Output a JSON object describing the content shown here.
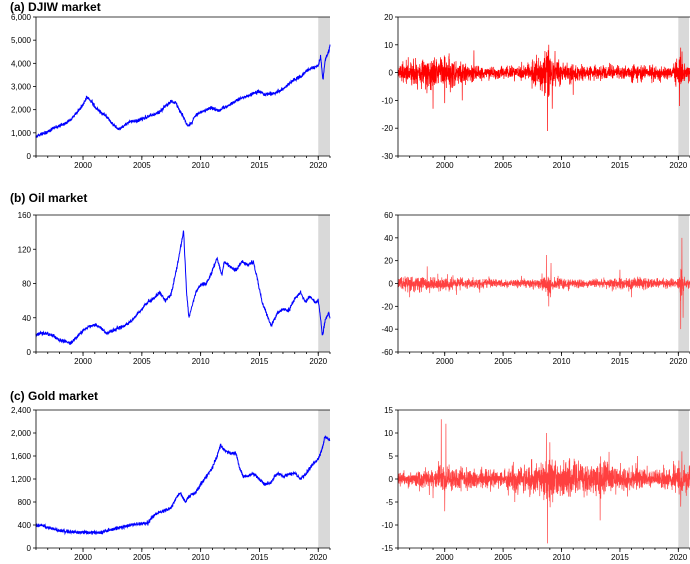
{
  "chart_data": [
    {
      "type": "line",
      "title": "(a) DJIW market",
      "series": [
        {
          "name": "",
          "color": "#0000ff",
          "x": [
            1996.0,
            1996.5,
            1997.0,
            1997.5,
            1998.0,
            1998.5,
            1999.0,
            1999.5,
            2000.0,
            2000.3,
            2000.8,
            2001.0,
            2001.5,
            2002.0,
            2002.5,
            2003.0,
            2003.5,
            2004.0,
            2004.5,
            2005.0,
            2005.5,
            2006.0,
            2006.5,
            2007.0,
            2007.5,
            2007.9,
            2008.3,
            2008.6,
            2008.9,
            2009.2,
            2009.5,
            2010.0,
            2010.5,
            2011.0,
            2011.5,
            2012.0,
            2012.5,
            2013.0,
            2013.5,
            2014.0,
            2014.5,
            2015.0,
            2015.5,
            2016.0,
            2016.5,
            2017.0,
            2017.5,
            2018.0,
            2018.5,
            2019.0,
            2019.5,
            2020.0,
            2020.2,
            2020.4,
            2020.6,
            2020.9,
            2021.0
          ],
          "y": [
            850,
            950,
            1050,
            1200,
            1300,
            1400,
            1600,
            1900,
            2200,
            2550,
            2300,
            2100,
            1900,
            1700,
            1400,
            1150,
            1300,
            1500,
            1500,
            1600,
            1700,
            1800,
            1900,
            2150,
            2350,
            2300,
            1900,
            1600,
            1300,
            1400,
            1700,
            1900,
            2000,
            2100,
            1950,
            2100,
            2200,
            2400,
            2500,
            2600,
            2700,
            2800,
            2650,
            2700,
            2750,
            2900,
            3100,
            3300,
            3400,
            3700,
            3800,
            3900,
            4300,
            3300,
            4200,
            4500,
            4800
          ]
        }
      ],
      "ylim": [
        0,
        6000
      ],
      "yticks": [
        "0",
        "1,000",
        "2,000",
        "3,000",
        "4,000",
        "5,000",
        "6,000"
      ],
      "ytick_values": [
        0,
        1000,
        2000,
        3000,
        4000,
        5000,
        6000
      ],
      "xlim": [
        1996,
        2021
      ],
      "xticks": [
        "2000",
        "2005",
        "2010",
        "2015",
        "2020"
      ],
      "xtick_values": [
        2000,
        2005,
        2010,
        2015,
        2020
      ],
      "shaded_region": [
        2020,
        2021
      ]
    },
    {
      "type": "line",
      "title": "",
      "series": [
        {
          "name": "",
          "color": "#ff0000",
          "volatility": [
            [
              1996.0,
              3
            ],
            [
              1998.0,
              4
            ],
            [
              2000.0,
              5
            ],
            [
              2002.0,
              3
            ],
            [
              2004.0,
              2
            ],
            [
              2006.0,
              2
            ],
            [
              2008.0,
              4
            ],
            [
              2008.8,
              8
            ],
            [
              2009.5,
              5
            ],
            [
              2010.0,
              3
            ],
            [
              2012.0,
              2.5
            ],
            [
              2014.0,
              2
            ],
            [
              2016.0,
              2.5
            ],
            [
              2018.0,
              2.5
            ],
            [
              2019.5,
              2
            ],
            [
              2020.0,
              5
            ],
            [
              2020.5,
              4
            ],
            [
              2021.0,
              2.5
            ]
          ],
          "spikes": [
            [
              1999.0,
              -13
            ],
            [
              2000.0,
              -11
            ],
            [
              2001.5,
              -10
            ],
            [
              2002.5,
              8
            ],
            [
              2008.8,
              -21
            ],
            [
              2008.9,
              10
            ],
            [
              2009.2,
              -13
            ],
            [
              2011.0,
              -8
            ],
            [
              2020.1,
              -12
            ],
            [
              2020.2,
              9
            ]
          ]
        }
      ],
      "ylim": [
        -30,
        20
      ],
      "yticks": [
        "-30",
        "-20",
        "-10",
        "0",
        "10",
        "20"
      ],
      "ytick_values": [
        -30,
        -20,
        -10,
        0,
        10,
        20
      ],
      "xlim": [
        1996,
        2021
      ],
      "xticks": [
        "2000",
        "2005",
        "2010",
        "2015",
        "2020"
      ],
      "xtick_values": [
        2000,
        2005,
        2010,
        2015,
        2020
      ],
      "shaded_region": [
        2020,
        2021
      ]
    },
    {
      "type": "line",
      "title": "(b) Oil market",
      "series": [
        {
          "name": "",
          "color": "#0000ff",
          "x": [
            1996.0,
            1996.5,
            1997.0,
            1997.5,
            1998.0,
            1998.5,
            1999.0,
            1999.5,
            2000.0,
            2000.5,
            2001.0,
            2001.5,
            2002.0,
            2002.5,
            2003.0,
            2003.5,
            2004.0,
            2004.5,
            2005.0,
            2005.5,
            2006.0,
            2006.5,
            2007.0,
            2007.5,
            2008.0,
            2008.4,
            2008.55,
            2008.8,
            2009.0,
            2009.3,
            2009.6,
            2010.0,
            2010.5,
            2011.0,
            2011.4,
            2011.8,
            2012.0,
            2012.5,
            2013.0,
            2013.5,
            2014.0,
            2014.5,
            2014.9,
            2015.2,
            2015.6,
            2016.0,
            2016.5,
            2017.0,
            2017.5,
            2018.0,
            2018.5,
            2018.9,
            2019.3,
            2019.8,
            2020.0,
            2020.2,
            2020.35,
            2020.6,
            2020.9,
            2021.0
          ],
          "y": [
            20,
            22,
            21,
            19,
            14,
            12,
            11,
            18,
            25,
            30,
            32,
            28,
            22,
            25,
            28,
            30,
            35,
            42,
            50,
            58,
            62,
            70,
            60,
            68,
            100,
            130,
            142,
            70,
            40,
            55,
            70,
            78,
            80,
            95,
            110,
            90,
            105,
            100,
            95,
            105,
            102,
            105,
            80,
            60,
            45,
            30,
            45,
            50,
            48,
            62,
            70,
            58,
            65,
            58,
            60,
            40,
            18,
            38,
            45,
            40
          ]
        }
      ],
      "ylim": [
        0,
        160
      ],
      "yticks": [
        "0",
        "40",
        "80",
        "120",
        "160"
      ],
      "ytick_values": [
        0,
        40,
        80,
        120,
        160
      ],
      "xlim": [
        1996,
        2021
      ],
      "xticks": [
        "2000",
        "2005",
        "2010",
        "2015",
        "2020"
      ],
      "xtick_values": [
        2000,
        2005,
        2010,
        2015,
        2020
      ],
      "shaded_region": [
        2020,
        2021
      ]
    },
    {
      "type": "line",
      "title": "",
      "series": [
        {
          "name": "",
          "color": "#ff4040",
          "volatility": [
            [
              1996.0,
              5
            ],
            [
              1998.0,
              6
            ],
            [
              2000.0,
              5
            ],
            [
              2002.0,
              4
            ],
            [
              2004.0,
              3
            ],
            [
              2006.0,
              3
            ],
            [
              2008.0,
              4
            ],
            [
              2008.8,
              9
            ],
            [
              2009.5,
              5
            ],
            [
              2011.0,
              3
            ],
            [
              2013.0,
              3
            ],
            [
              2015.0,
              4
            ],
            [
              2016.0,
              5
            ],
            [
              2018.0,
              4
            ],
            [
              2019.5,
              3
            ],
            [
              2020.0,
              4
            ],
            [
              2020.2,
              12
            ],
            [
              2020.5,
              6
            ],
            [
              2021.0,
              4
            ]
          ],
          "spikes": [
            [
              1997.0,
              -12
            ],
            [
              1998.5,
              15
            ],
            [
              2001.0,
              -10
            ],
            [
              2003.0,
              -8
            ],
            [
              2008.7,
              25
            ],
            [
              2008.9,
              -20
            ],
            [
              2009.1,
              18
            ],
            [
              2015.0,
              12
            ],
            [
              2016.0,
              -12
            ],
            [
              2020.2,
              -40
            ],
            [
              2020.3,
              40
            ],
            [
              2020.4,
              -30
            ]
          ]
        }
      ],
      "ylim": [
        -60,
        60
      ],
      "yticks": [
        "-60",
        "-40",
        "-20",
        "0",
        "20",
        "40",
        "60"
      ],
      "ytick_values": [
        -60,
        -40,
        -20,
        0,
        20,
        40,
        60
      ],
      "xlim": [
        1996,
        2021
      ],
      "xticks": [
        "2000",
        "2005",
        "2010",
        "2015",
        "2020"
      ],
      "xtick_values": [
        2000,
        2005,
        2010,
        2015,
        2020
      ],
      "shaded_region": [
        2020,
        2021
      ]
    },
    {
      "type": "line",
      "title": "(c) Gold market",
      "series": [
        {
          "name": "",
          "color": "#0000ff",
          "x": [
            1996.0,
            1996.5,
            1997.0,
            1997.5,
            1998.0,
            1998.5,
            1999.0,
            1999.5,
            2000.0,
            2000.5,
            2001.0,
            2001.5,
            2002.0,
            2002.5,
            2003.0,
            2003.5,
            2004.0,
            2004.5,
            2005.0,
            2005.5,
            2006.0,
            2006.5,
            2007.0,
            2007.5,
            2008.0,
            2008.3,
            2008.7,
            2009.0,
            2009.5,
            2010.0,
            2010.5,
            2011.0,
            2011.4,
            2011.7,
            2012.0,
            2012.5,
            2013.0,
            2013.3,
            2013.6,
            2014.0,
            2014.5,
            2015.0,
            2015.5,
            2016.0,
            2016.5,
            2017.0,
            2017.5,
            2018.0,
            2018.5,
            2019.0,
            2019.5,
            2020.0,
            2020.3,
            2020.6,
            2020.8,
            2021.0
          ],
          "y": [
            400,
            390,
            360,
            330,
            300,
            290,
            280,
            270,
            280,
            275,
            265,
            270,
            300,
            320,
            350,
            370,
            400,
            410,
            430,
            440,
            560,
            620,
            650,
            700,
            900,
            950,
            800,
            900,
            950,
            1100,
            1250,
            1400,
            1600,
            1800,
            1700,
            1650,
            1650,
            1400,
            1250,
            1250,
            1300,
            1200,
            1100,
            1150,
            1300,
            1250,
            1280,
            1300,
            1200,
            1300,
            1450,
            1550,
            1700,
            1950,
            1900,
            1850
          ]
        }
      ],
      "ylim": [
        0,
        2400
      ],
      "yticks": [
        "0",
        "400",
        "800",
        "1,200",
        "1,600",
        "2,000",
        "2,400"
      ],
      "ytick_values": [
        0,
        400,
        800,
        1200,
        1600,
        2000,
        2400
      ],
      "xlim": [
        1996,
        2021
      ],
      "xticks": [
        "2000",
        "2005",
        "2010",
        "2015",
        "2020"
      ],
      "xtick_values": [
        2000,
        2005,
        2010,
        2015,
        2020
      ],
      "shaded_region": [
        2020,
        2021
      ]
    },
    {
      "type": "line",
      "title": "",
      "series": [
        {
          "name": "",
          "color": "#ff4040",
          "volatility": [
            [
              1996.0,
              1.2
            ],
            [
              1998.0,
              1.5
            ],
            [
              1999.5,
              2.5
            ],
            [
              2001.0,
              2
            ],
            [
              2003.0,
              2
            ],
            [
              2005.0,
              1.5
            ],
            [
              2006.0,
              3
            ],
            [
              2007.0,
              2.5
            ],
            [
              2008.0,
              3
            ],
            [
              2008.8,
              5
            ],
            [
              2009.5,
              3.5
            ],
            [
              2011.0,
              3.5
            ],
            [
              2012.0,
              2.5
            ],
            [
              2013.5,
              3.5
            ],
            [
              2015.0,
              2.5
            ],
            [
              2017.0,
              2
            ],
            [
              2018.0,
              1.5
            ],
            [
              2019.5,
              2
            ],
            [
              2020.0,
              3
            ],
            [
              2020.5,
              3
            ],
            [
              2021.0,
              2
            ]
          ],
          "spikes": [
            [
              1999.7,
              13
            ],
            [
              2000.0,
              -7
            ],
            [
              2000.1,
              12
            ],
            [
              2006.0,
              -5
            ],
            [
              2008.7,
              10
            ],
            [
              2008.8,
              -14
            ],
            [
              2009.0,
              8
            ],
            [
              2013.3,
              -9
            ],
            [
              2016.5,
              5
            ],
            [
              2020.2,
              -6
            ],
            [
              2020.3,
              6
            ]
          ]
        }
      ],
      "ylim": [
        -15,
        15
      ],
      "yticks": [
        "-15",
        "-10",
        "-5",
        "0",
        "5",
        "10",
        "15"
      ],
      "ytick_values": [
        -15,
        -10,
        -5,
        0,
        5,
        10,
        15
      ],
      "xlim": [
        1996,
        2021
      ],
      "xticks": [
        "2000",
        "2005",
        "2010",
        "2015",
        "2020"
      ],
      "xtick_values": [
        2000,
        2005,
        2010,
        2015,
        2020
      ],
      "shaded_region": [
        2020,
        2021
      ]
    }
  ]
}
